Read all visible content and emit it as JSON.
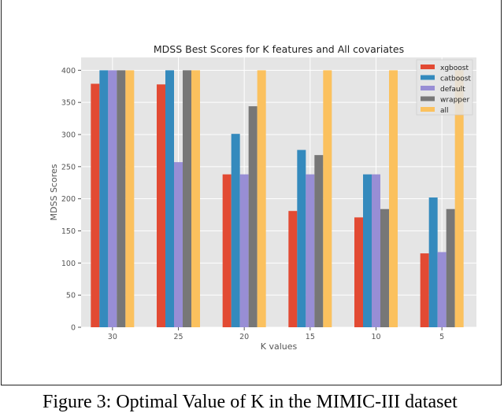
{
  "chart_data": {
    "type": "bar",
    "title": "MDSS Best Scores for K features and All covariates",
    "xlabel": "K values",
    "ylabel": "MDSS Scores",
    "categories": [
      "30",
      "25",
      "20",
      "15",
      "10",
      "5"
    ],
    "ylim": [
      0,
      420
    ],
    "yticks": [
      0,
      50,
      100,
      150,
      200,
      250,
      300,
      350,
      400
    ],
    "grid": true,
    "legend_position": "top-right",
    "series": [
      {
        "name": "xgboost",
        "color": "#E24A33",
        "values": [
          379,
          378,
          238,
          181,
          171,
          115
        ]
      },
      {
        "name": "catboost",
        "color": "#348ABD",
        "values": [
          400,
          400,
          301,
          276,
          238,
          202
        ]
      },
      {
        "name": "default",
        "color": "#988ED5",
        "values": [
          400,
          257,
          238,
          238,
          238,
          117
        ]
      },
      {
        "name": "wrapper",
        "color": "#777777",
        "values": [
          400,
          400,
          344,
          268,
          184,
          184
        ]
      },
      {
        "name": "all",
        "color": "#FBC15E",
        "values": [
          400,
          400,
          400,
          400,
          400,
          400
        ]
      }
    ]
  },
  "caption": "Figure 3: Optimal Value of K in the MIMIC-III dataset"
}
